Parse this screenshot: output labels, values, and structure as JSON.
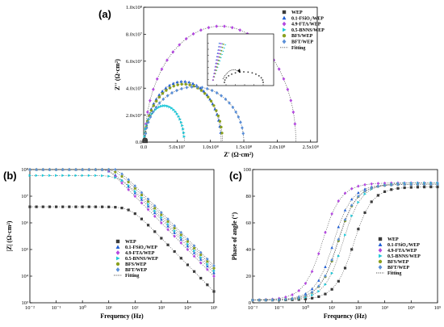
{
  "figure": {
    "colors": {
      "WEP": "#3b3b3b",
      "0.1-FSiO2/WEP": "#1f5fd6",
      "4.9-FTA/WEP": "#b44ae0",
      "0.5-BNNS/WEP": "#1ec8d8",
      "BFS/WEP": "#8aa01e",
      "BFT/WEP": "#5a8fd8",
      "Fitting": "#555555"
    },
    "markers": {
      "WEP": "square",
      "0.1-FSiO2/WEP": "triangle",
      "4.9-FTA/WEP": "diamond",
      "0.5-BNNS/WEP": "triangle-right",
      "BFS/WEP": "circle",
      "BFT/WEP": "diamond"
    }
  },
  "chart_data": [
    {
      "panel_label": "(a)",
      "type": "scatter",
      "xlabel": "Z' (Ω·cm²)",
      "ylabel": "Z'' (Ω·cm²)",
      "xlim": [
        0,
        260000000.0
      ],
      "ylim": [
        0,
        100000000.0
      ],
      "x_ticks": [
        "0.0",
        "5.0x10⁷",
        "1.0x10⁸",
        "1.5x10⁸",
        "2.0x10⁸",
        "2.5x10⁸"
      ],
      "y_ticks": [
        "0.0",
        "2.0x10⁷",
        "4.0x10⁷",
        "6.0x10⁷",
        "8.0x10⁷",
        "1.0x10⁸"
      ],
      "legend": [
        "WEP",
        "0.1-FSiO₂/WEP",
        "4.9-FTA/WEP",
        "0.5-BNNS/WEP",
        "BFS/WEP",
        "BFT/WEP",
        "Fitting"
      ],
      "has_inset": true,
      "series": [
        {
          "name": "WEP",
          "arc": {
            "r0": 0,
            "diameter": 4000000.0,
            "peak": 2000000.0
          }
        },
        {
          "name": "0.1-FSiO₂/WEP",
          "arc": {
            "r0": 2000000.0,
            "diameter": 114000000.0,
            "peak": 45000000.0
          }
        },
        {
          "name": "4.9-FTA/WEP",
          "arc": {
            "r0": 2000000.0,
            "diameter": 226000000.0,
            "peak": 86000000.0
          }
        },
        {
          "name": "0.5-BNNS/WEP",
          "arc": {
            "r0": 1000000.0,
            "diameter": 60000000.0,
            "peak": 27000000.0
          }
        },
        {
          "name": "BFS/WEP",
          "arc": {
            "r0": 2000000.0,
            "diameter": 116000000.0,
            "peak": 43000000.0
          }
        },
        {
          "name": "BFT/WEP",
          "arc": {
            "r0": 2000000.0,
            "diameter": 148000000.0,
            "peak": 41000000.0
          }
        }
      ]
    },
    {
      "panel_label": "(b)",
      "type": "scatter",
      "xscale": "log",
      "yscale": "log",
      "xlabel": "Frequency (Hz)",
      "ylabel": "|Z| (Ω·cm²)",
      "xlim": [
        0.01,
        100000
      ],
      "ylim": [
        1000,
        100000000.0
      ],
      "x_ticks": [
        "10⁻²",
        "10⁻¹",
        "10⁰",
        "10¹",
        "10²",
        "10³",
        "10⁴",
        "10⁵"
      ],
      "y_ticks": [
        "10³",
        "10⁴",
        "10⁵",
        "10⁶",
        "10⁷",
        "10⁸"
      ],
      "legend": [
        "WEP",
        "0.1-FSiO₂/WEP",
        "4.9-FTA/WEP",
        "0.5-BNNS/WEP",
        "BFS/WEP",
        "BFT/WEP",
        "Fitting"
      ],
      "series": [
        {
          "name": "WEP",
          "R": 4000000.0,
          "C": 6e-10
        },
        {
          "name": "0.1-FSiO₂/WEP",
          "R": 114000000.0,
          "C": 1.2e-10
        },
        {
          "name": "4.9-FTA/WEP",
          "R": 226000000.0,
          "C": 1.6e-10
        },
        {
          "name": "0.5-BNNS/WEP",
          "R": 60000000.0,
          "C": 1e-10
        },
        {
          "name": "BFS/WEP",
          "R": 116000000.0,
          "C": 8e-11
        },
        {
          "name": "BFT/WEP",
          "R": 148000000.0,
          "C": 6.5e-11
        }
      ]
    },
    {
      "panel_label": "(c)",
      "type": "scatter",
      "xscale": "log",
      "xlabel": "Frequency (Hz)",
      "ylabel": "Phase of angle (°)",
      "xlim": [
        0.01,
        100000
      ],
      "ylim": [
        0,
        100
      ],
      "x_ticks": [
        "10⁻²",
        "10⁻¹",
        "10⁰",
        "10¹",
        "10²",
        "10³",
        "10⁴",
        "10⁵"
      ],
      "y_ticks": [
        "0",
        "20",
        "40",
        "60",
        "80",
        "100"
      ],
      "legend": [
        "WEP",
        "0.1-FSiO₂/WEP",
        "4.9-FTA/WEP",
        "0.5-BNNS/WEP",
        "BFS/WEP",
        "BFT/WEP",
        "Fitting"
      ],
      "series": [
        {
          "name": "WEP",
          "R": 4000000.0,
          "C": 6e-10,
          "max": 85
        },
        {
          "name": "0.1-FSiO₂/WEP",
          "R": 114000000.0,
          "C": 1.2e-10,
          "max": 87
        },
        {
          "name": "4.9-FTA/WEP",
          "R": 226000000.0,
          "C": 1.6e-10,
          "max": 88
        },
        {
          "name": "0.5-BNNS/WEP",
          "R": 60000000.0,
          "C": 1e-10,
          "max": 88
        },
        {
          "name": "BFS/WEP",
          "R": 116000000.0,
          "C": 8e-11,
          "max": 87
        },
        {
          "name": "BFT/WEP",
          "R": 148000000.0,
          "C": 6.5e-11,
          "max": 87
        }
      ]
    }
  ]
}
